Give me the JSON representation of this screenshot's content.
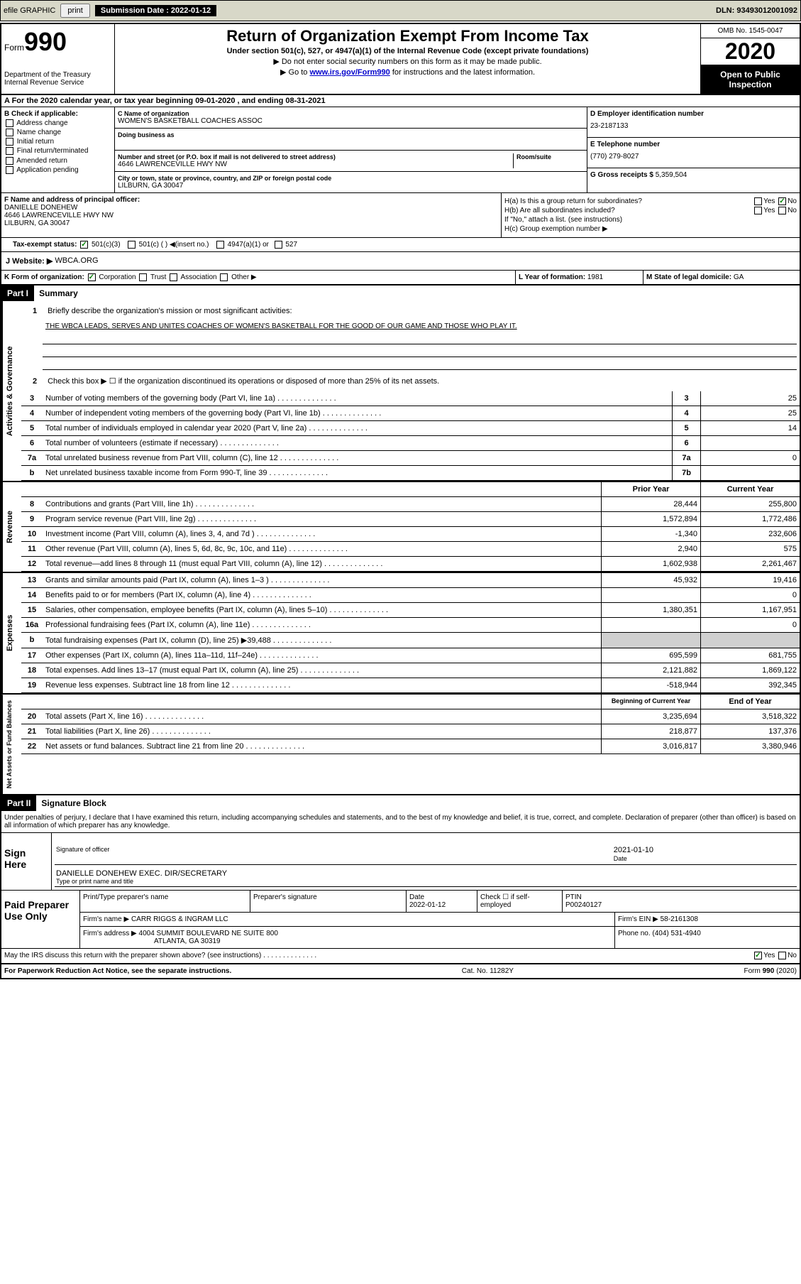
{
  "header_bar": {
    "efile_label": "efile GRAPHIC",
    "print_btn": "print",
    "submission_label": "Submission Date : 2022-01-12",
    "dln": "DLN: 93493012001092"
  },
  "form": {
    "form_word": "Form",
    "form_number": "990",
    "dept": "Department of the Treasury\nInternal Revenue Service",
    "main_title": "Return of Organization Exempt From Income Tax",
    "subtitle": "Under section 501(c), 527, or 4947(a)(1) of the Internal Revenue Code (except private foundations)",
    "instruction1": "▶ Do not enter social security numbers on this form as it may be made public.",
    "instruction2_pre": "▶ Go to ",
    "instruction2_link": "www.irs.gov/Form990",
    "instruction2_post": " for instructions and the latest information.",
    "omb": "OMB No. 1545-0047",
    "year": "2020",
    "open_public": "Open to Public Inspection"
  },
  "section_a": "A For the 2020 calendar year, or tax year beginning 09-01-2020   , and ending 08-31-2021",
  "col_b": {
    "label": "B Check if applicable:",
    "items": [
      "Address change",
      "Name change",
      "Initial return",
      "Final return/terminated",
      "Amended return",
      "Application pending"
    ]
  },
  "col_c": {
    "name_label": "C Name of organization",
    "name": "WOMEN'S BASKETBALL COACHES ASSOC",
    "dba_label": "Doing business as",
    "addr_label": "Number and street (or P.O. box if mail is not delivered to street address)",
    "room_label": "Room/suite",
    "addr": "4646 LAWRENCEVILLE HWY NW",
    "city_label": "City or town, state or province, country, and ZIP or foreign postal code",
    "city": "LILBURN, GA  30047"
  },
  "col_d": {
    "ein_label": "D Employer identification number",
    "ein": "23-2187133",
    "tel_label": "E Telephone number",
    "tel": "(770) 279-8027",
    "gross_label": "G Gross receipts $",
    "gross": "5,359,504"
  },
  "section_f": {
    "label": "F  Name and address of principal officer:",
    "name": "DANIELLE DONEHEW",
    "addr": "4646 LAWRENCEVILLE HWY NW",
    "city": "LILBURN, GA  30047"
  },
  "section_h": {
    "ha": "H(a)  Is this a group return for subordinates?",
    "hb": "H(b)  Are all subordinates included?",
    "hb_note": "If \"No,\" attach a list. (see instructions)",
    "hc": "H(c)  Group exemption number ▶",
    "yes": "Yes",
    "no": "No"
  },
  "tax_exempt": {
    "label": "Tax-exempt status:",
    "opt1": "501(c)(3)",
    "opt2": "501(c) (  ) ◀(insert no.)",
    "opt3": "4947(a)(1) or",
    "opt4": "527"
  },
  "website": {
    "label": "J  Website: ▶",
    "val": "WBCA.ORG"
  },
  "k": {
    "label": "K Form of organization:",
    "opts": [
      "Corporation",
      "Trust",
      "Association",
      "Other ▶"
    ]
  },
  "l": {
    "label": "L Year of formation:",
    "val": "1981"
  },
  "m": {
    "label": "M State of legal domicile:",
    "val": "GA"
  },
  "part1": {
    "num": "Part I",
    "title": "Summary"
  },
  "summary": {
    "line1_label": "Briefly describe the organization's mission or most significant activities:",
    "line1_text": "THE WBCA LEADS, SERVES AND UNITES COACHES OF WOMEN'S BASKETBALL FOR THE GOOD OF OUR GAME AND THOSE WHO PLAY IT.",
    "line2": "Check this box ▶ ☐  if the organization discontinued its operations or disposed of more than 25% of its net assets.",
    "lines_single": [
      {
        "num": "3",
        "desc": "Number of voting members of the governing body (Part VI, line 1a)",
        "box": "3",
        "val": "25"
      },
      {
        "num": "4",
        "desc": "Number of independent voting members of the governing body (Part VI, line 1b)",
        "box": "4",
        "val": "25"
      },
      {
        "num": "5",
        "desc": "Total number of individuals employed in calendar year 2020 (Part V, line 2a)",
        "box": "5",
        "val": "14"
      },
      {
        "num": "6",
        "desc": "Total number of volunteers (estimate if necessary)",
        "box": "6",
        "val": ""
      },
      {
        "num": "7a",
        "desc": "Total unrelated business revenue from Part VIII, column (C), line 12",
        "box": "7a",
        "val": "0"
      },
      {
        "num": "b",
        "desc": "Net unrelated business taxable income from Form 990-T, line 39",
        "box": "7b",
        "val": ""
      }
    ],
    "prior_year": "Prior Year",
    "current_year": "Current Year",
    "revenue_lines": [
      {
        "num": "8",
        "desc": "Contributions and grants (Part VIII, line 1h)",
        "prior": "28,444",
        "current": "255,800"
      },
      {
        "num": "9",
        "desc": "Program service revenue (Part VIII, line 2g)",
        "prior": "1,572,894",
        "current": "1,772,486"
      },
      {
        "num": "10",
        "desc": "Investment income (Part VIII, column (A), lines 3, 4, and 7d )",
        "prior": "-1,340",
        "current": "232,606"
      },
      {
        "num": "11",
        "desc": "Other revenue (Part VIII, column (A), lines 5, 6d, 8c, 9c, 10c, and 11e)",
        "prior": "2,940",
        "current": "575"
      },
      {
        "num": "12",
        "desc": "Total revenue—add lines 8 through 11 (must equal Part VIII, column (A), line 12)",
        "prior": "1,602,938",
        "current": "2,261,467"
      }
    ],
    "expense_lines": [
      {
        "num": "13",
        "desc": "Grants and similar amounts paid (Part IX, column (A), lines 1–3 )",
        "prior": "45,932",
        "current": "19,416"
      },
      {
        "num": "14",
        "desc": "Benefits paid to or for members (Part IX, column (A), line 4)",
        "prior": "",
        "current": "0"
      },
      {
        "num": "15",
        "desc": "Salaries, other compensation, employee benefits (Part IX, column (A), lines 5–10)",
        "prior": "1,380,351",
        "current": "1,167,951"
      },
      {
        "num": "16a",
        "desc": "Professional fundraising fees (Part IX, column (A), line 11e)",
        "prior": "",
        "current": "0"
      },
      {
        "num": "b",
        "desc": "Total fundraising expenses (Part IX, column (D), line 25) ▶39,488",
        "prior": "gray",
        "current": "gray"
      },
      {
        "num": "17",
        "desc": "Other expenses (Part IX, column (A), lines 11a–11d, 11f–24e)",
        "prior": "695,599",
        "current": "681,755"
      },
      {
        "num": "18",
        "desc": "Total expenses. Add lines 13–17 (must equal Part IX, column (A), line 25)",
        "prior": "2,121,882",
        "current": "1,869,122"
      },
      {
        "num": "19",
        "desc": "Revenue less expenses. Subtract line 18 from line 12",
        "prior": "-518,944",
        "current": "392,345"
      }
    ],
    "beg_year": "Beginning of Current Year",
    "end_year": "End of Year",
    "balance_lines": [
      {
        "num": "20",
        "desc": "Total assets (Part X, line 16)",
        "prior": "3,235,694",
        "current": "3,518,322"
      },
      {
        "num": "21",
        "desc": "Total liabilities (Part X, line 26)",
        "prior": "218,877",
        "current": "137,376"
      },
      {
        "num": "22",
        "desc": "Net assets or fund balances. Subtract line 21 from line 20",
        "prior": "3,016,817",
        "current": "3,380,946"
      }
    ]
  },
  "vertical_labels": {
    "governance": "Activities & Governance",
    "revenue": "Revenue",
    "expenses": "Expenses",
    "balances": "Net Assets or Fund Balances"
  },
  "part2": {
    "num": "Part II",
    "title": "Signature Block"
  },
  "signature": {
    "penalty_text": "Under penalties of perjury, I declare that I have examined this return, including accompanying schedules and statements, and to the best of my knowledge and belief, it is true, correct, and complete. Declaration of preparer (other than officer) is based on all information of which preparer has any knowledge.",
    "sign_here": "Sign Here",
    "sig_officer_label": "Signature of officer",
    "date_label": "Date",
    "sig_date": "2021-01-10",
    "name_title": "DANIELLE DONEHEW  EXEC. DIR/SECRETARY",
    "name_label": "Type or print name and title"
  },
  "preparer": {
    "label": "Paid Preparer Use Only",
    "print_name_label": "Print/Type preparer's name",
    "prep_sig_label": "Preparer's signature",
    "date_label": "Date",
    "date": "2022-01-12",
    "check_label": "Check ☐ if self-employed",
    "ptin_label": "PTIN",
    "ptin": "P00240127",
    "firm_name_label": "Firm's name    ▶",
    "firm_name": "CARR RIGGS & INGRAM LLC",
    "firm_ein_label": "Firm's EIN ▶",
    "firm_ein": "58-2161308",
    "firm_addr_label": "Firm's address ▶",
    "firm_addr": "4004 SUMMIT BOULEVARD NE SUITE 800",
    "firm_city": "ATLANTA, GA  30319",
    "phone_label": "Phone no.",
    "phone": "(404) 531-4940"
  },
  "discuss": {
    "text": "May the IRS discuss this return with the preparer shown above? (see instructions)",
    "yes": "Yes",
    "no": "No"
  },
  "footer": {
    "left": "For Paperwork Reduction Act Notice, see the separate instructions.",
    "mid": "Cat. No. 11282Y",
    "right": "Form 990 (2020)"
  }
}
